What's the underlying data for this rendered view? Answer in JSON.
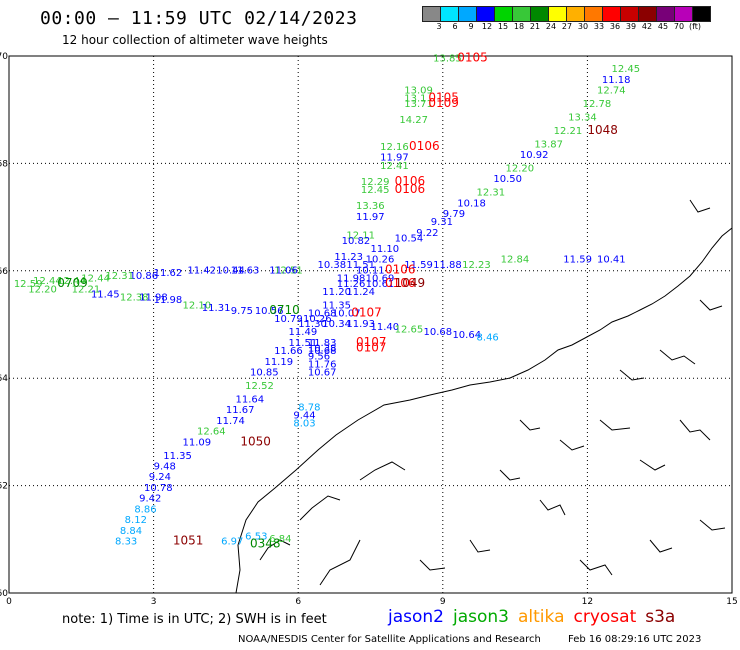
{
  "header": {
    "title": "00:00 – 11:59 UTC 02/14/2023",
    "subtitle": "12 hour collection of altimeter wave heights"
  },
  "colorbar": {
    "colors": [
      "#888888",
      "#00e5ff",
      "#00a8ff",
      "#0000ff",
      "#00d400",
      "#38c838",
      "#008800",
      "#ffff00",
      "#ffb000",
      "#ff7800",
      "#ff0000",
      "#c80000",
      "#8b0000",
      "#780078",
      "#b800b8",
      "#000000"
    ],
    "labels": [
      "3",
      "6",
      "9",
      "12",
      "15",
      "18",
      "21",
      "24",
      "27",
      "30",
      "33",
      "36",
      "39",
      "42",
      "45",
      "70",
      "(ft)"
    ]
  },
  "axes": {
    "x_ticks": [
      "0",
      "3",
      "6",
      "9",
      "12",
      "15"
    ],
    "y_ticks": [
      "70",
      "68",
      "66",
      "64",
      "62",
      "60"
    ]
  },
  "observations": [
    {
      "lon": 8.8,
      "lat": 69.9,
      "t": "13.85",
      "c": "#38c838"
    },
    {
      "lon": 9.3,
      "lat": 69.9,
      "t": "0105",
      "c": "#ff0000"
    },
    {
      "lon": 12.5,
      "lat": 69.7,
      "t": "12.45",
      "c": "#38c838"
    },
    {
      "lon": 12.3,
      "lat": 69.5,
      "t": "11.18",
      "c": "#0000ff"
    },
    {
      "lon": 8.2,
      "lat": 69.3,
      "t": "13.09",
      "c": "#38c838"
    },
    {
      "lon": 12.2,
      "lat": 69.3,
      "t": "12.74",
      "c": "#38c838"
    },
    {
      "lon": 8.2,
      "lat": 69.15,
      "t": "13.1",
      "c": "#38c838"
    },
    {
      "lon": 8.7,
      "lat": 69.15,
      "t": "0105",
      "c": "#ff0000"
    },
    {
      "lon": 8.2,
      "lat": 69.05,
      "t": "13.71",
      "c": "#38c838"
    },
    {
      "lon": 8.7,
      "lat": 69.05,
      "t": "0109",
      "c": "#ff0000"
    },
    {
      "lon": 11.9,
      "lat": 69.05,
      "t": "12.78",
      "c": "#38c838"
    },
    {
      "lon": 11.6,
      "lat": 68.8,
      "t": "13.34",
      "c": "#38c838"
    },
    {
      "lon": 8.1,
      "lat": 68.75,
      "t": "14.27",
      "c": "#38c838"
    },
    {
      "lon": 11.3,
      "lat": 68.55,
      "t": "12.21",
      "c": "#38c838"
    },
    {
      "lon": 12.0,
      "lat": 68.55,
      "t": "1048",
      "c": "#8b0000"
    },
    {
      "lon": 10.9,
      "lat": 68.3,
      "t": "13.87",
      "c": "#38c838"
    },
    {
      "lon": 7.7,
      "lat": 68.25,
      "t": "12.16",
      "c": "#38c838"
    },
    {
      "lon": 8.3,
      "lat": 68.25,
      "t": "0106",
      "c": "#ff0000"
    },
    {
      "lon": 10.6,
      "lat": 68.1,
      "t": "10.92",
      "c": "#0000ff"
    },
    {
      "lon": 7.7,
      "lat": 68.05,
      "t": "11.97",
      "c": "#0000ff"
    },
    {
      "lon": 7.7,
      "lat": 67.9,
      "t": "12.41",
      "c": "#38c838"
    },
    {
      "lon": 10.3,
      "lat": 67.85,
      "t": "12.20",
      "c": "#38c838"
    },
    {
      "lon": 10.05,
      "lat": 67.65,
      "t": "10.50",
      "c": "#0000ff"
    },
    {
      "lon": 7.3,
      "lat": 67.6,
      "t": "12.29",
      "c": "#38c838"
    },
    {
      "lon": 8.0,
      "lat": 67.6,
      "t": "0106",
      "c": "#ff0000"
    },
    {
      "lon": 7.3,
      "lat": 67.45,
      "t": "12.45",
      "c": "#38c838"
    },
    {
      "lon": 8.0,
      "lat": 67.45,
      "t": "0106",
      "c": "#ff0000"
    },
    {
      "lon": 9.7,
      "lat": 67.4,
      "t": "12.31",
      "c": "#38c838"
    },
    {
      "lon": 9.3,
      "lat": 67.2,
      "t": "10.18",
      "c": "#0000ff"
    },
    {
      "lon": 7.2,
      "lat": 67.15,
      "t": "13.36",
      "c": "#38c838"
    },
    {
      "lon": 9.0,
      "lat": 67.0,
      "t": "9.79",
      "c": "#0000ff"
    },
    {
      "lon": 7.2,
      "lat": 66.95,
      "t": "11.97",
      "c": "#0000ff"
    },
    {
      "lon": 8.75,
      "lat": 66.85,
      "t": "9.31",
      "c": "#0000ff"
    },
    {
      "lon": 8.45,
      "lat": 66.65,
      "t": "9.22",
      "c": "#0000ff"
    },
    {
      "lon": 7.0,
      "lat": 66.6,
      "t": "12.11",
      "c": "#38c838"
    },
    {
      "lon": 8.0,
      "lat": 66.55,
      "t": "10.54",
      "c": "#0000ff"
    },
    {
      "lon": 6.9,
      "lat": 66.5,
      "t": "10.82",
      "c": "#0000ff"
    },
    {
      "lon": 7.5,
      "lat": 66.35,
      "t": "11.10",
      "c": "#0000ff"
    },
    {
      "lon": 6.75,
      "lat": 66.2,
      "t": "11.23",
      "c": "#0000ff"
    },
    {
      "lon": 7.4,
      "lat": 66.15,
      "t": "10.26",
      "c": "#0000ff"
    },
    {
      "lon": 10.2,
      "lat": 66.15,
      "t": "12.84",
      "c": "#38c838"
    },
    {
      "lon": 11.5,
      "lat": 66.15,
      "t": "11.59",
      "c": "#0000ff"
    },
    {
      "lon": 12.2,
      "lat": 66.15,
      "t": "10.41",
      "c": "#0000ff"
    },
    {
      "lon": 6.4,
      "lat": 66.05,
      "t": "10.38",
      "c": "#0000ff"
    },
    {
      "lon": 7.0,
      "lat": 66.05,
      "t": "11.51",
      "c": "#0000ff"
    },
    {
      "lon": 8.2,
      "lat": 66.05,
      "t": "11.59",
      "c": "#0000ff"
    },
    {
      "lon": 8.8,
      "lat": 66.05,
      "t": "11.88",
      "c": "#0000ff"
    },
    {
      "lon": 9.4,
      "lat": 66.05,
      "t": "12.23",
      "c": "#38c838"
    },
    {
      "lon": 5.5,
      "lat": 65.95,
      "t": "12.51",
      "c": "#38c838"
    },
    {
      "lon": 4.6,
      "lat": 65.95,
      "t": "11.63",
      "c": "#0000ff"
    },
    {
      "lon": 5.4,
      "lat": 65.95,
      "t": "11.06",
      "c": "#0000ff"
    },
    {
      "lon": 7.2,
      "lat": 65.95,
      "t": "10.11",
      "c": "#0000ff"
    },
    {
      "lon": 7.8,
      "lat": 65.95,
      "t": "0106",
      "c": "#ff0000"
    },
    {
      "lon": 3.7,
      "lat": 65.95,
      "t": "11.42",
      "c": "#0000ff"
    },
    {
      "lon": 4.3,
      "lat": 65.95,
      "t": "10.44",
      "c": "#0000ff"
    },
    {
      "lon": 3.0,
      "lat": 65.9,
      "t": "11.62",
      "c": "#0000ff"
    },
    {
      "lon": 2.5,
      "lat": 65.85,
      "t": "10.86",
      "c": "#0000ff"
    },
    {
      "lon": 2.0,
      "lat": 65.85,
      "t": "12.31",
      "c": "#38c838"
    },
    {
      "lon": 6.8,
      "lat": 65.8,
      "t": "11.98",
      "c": "#0000ff"
    },
    {
      "lon": 7.4,
      "lat": 65.8,
      "t": "10.69",
      "c": "#0000ff"
    },
    {
      "lon": 1.5,
      "lat": 65.8,
      "t": "12.44",
      "c": "#38c838"
    },
    {
      "lon": 1.0,
      "lat": 65.75,
      "t": "12.44",
      "c": "#38c838"
    },
    {
      "lon": 0.5,
      "lat": 65.75,
      "t": "12.44",
      "c": "#38c838"
    },
    {
      "lon": 0.1,
      "lat": 65.7,
      "t": "12.59",
      "c": "#38c838"
    },
    {
      "lon": 1.0,
      "lat": 65.7,
      "t": "0709",
      "c": "#008800"
    },
    {
      "lon": 6.8,
      "lat": 65.7,
      "t": "11.26",
      "c": "#0000ff"
    },
    {
      "lon": 7.4,
      "lat": 65.7,
      "t": "10.61",
      "c": "#0000ff"
    },
    {
      "lon": 7.8,
      "lat": 65.7,
      "t": "0106",
      "c": "#ff0000"
    },
    {
      "lon": 8.0,
      "lat": 65.7,
      "t": "1049",
      "c": "#8b0000"
    },
    {
      "lon": 0.4,
      "lat": 65.6,
      "t": "12.20",
      "c": "#38c838"
    },
    {
      "lon": 1.3,
      "lat": 65.6,
      "t": "12.21",
      "c": "#38c838"
    },
    {
      "lon": 6.5,
      "lat": 65.55,
      "t": "11.20",
      "c": "#0000ff"
    },
    {
      "lon": 7.0,
      "lat": 65.55,
      "t": "11.24",
      "c": "#0000ff"
    },
    {
      "lon": 1.7,
      "lat": 65.5,
      "t": "11.45",
      "c": "#0000ff"
    },
    {
      "lon": 2.3,
      "lat": 65.45,
      "t": "12.38",
      "c": "#38c838"
    },
    {
      "lon": 2.7,
      "lat": 65.45,
      "t": "11.98",
      "c": "#0000ff"
    },
    {
      "lon": 3.0,
      "lat": 65.4,
      "t": "11.98",
      "c": "#0000ff"
    },
    {
      "lon": 3.6,
      "lat": 65.3,
      "t": "12.10",
      "c": "#38c838"
    },
    {
      "lon": 6.5,
      "lat": 65.3,
      "t": "11.35",
      "c": "#0000ff"
    },
    {
      "lon": 4.0,
      "lat": 65.25,
      "t": "11.31",
      "c": "#0000ff"
    },
    {
      "lon": 4.6,
      "lat": 65.2,
      "t": "9.75",
      "c": "#0000ff"
    },
    {
      "lon": 5.1,
      "lat": 65.2,
      "t": "10.56",
      "c": "#0000ff"
    },
    {
      "lon": 5.4,
      "lat": 65.2,
      "t": "0710",
      "c": "#008800"
    },
    {
      "lon": 6.2,
      "lat": 65.15,
      "t": "10.68",
      "c": "#0000ff"
    },
    {
      "lon": 6.7,
      "lat": 65.15,
      "t": "10.07",
      "c": "#0000ff"
    },
    {
      "lon": 7.1,
      "lat": 65.15,
      "t": "0107",
      "c": "#ff0000"
    },
    {
      "lon": 5.5,
      "lat": 65.05,
      "t": "10.79",
      "c": "#0000ff"
    },
    {
      "lon": 6.1,
      "lat": 65.05,
      "t": "10.26",
      "c": "#0000ff"
    },
    {
      "lon": 6.0,
      "lat": 64.95,
      "t": "11.30",
      "c": "#0000ff"
    },
    {
      "lon": 6.5,
      "lat": 64.95,
      "t": "10.34",
      "c": "#0000ff"
    },
    {
      "lon": 7.0,
      "lat": 64.95,
      "t": "11.93",
      "c": "#0000ff"
    },
    {
      "lon": 7.5,
      "lat": 64.9,
      "t": "11.40",
      "c": "#0000ff"
    },
    {
      "lon": 8.0,
      "lat": 64.85,
      "t": "12.65",
      "c": "#38c838"
    },
    {
      "lon": 5.8,
      "lat": 64.8,
      "t": "11.49",
      "c": "#0000ff"
    },
    {
      "lon": 8.6,
      "lat": 64.8,
      "t": "10.68",
      "c": "#0000ff"
    },
    {
      "lon": 9.2,
      "lat": 64.75,
      "t": "10.64",
      "c": "#0000ff"
    },
    {
      "lon": 9.7,
      "lat": 64.7,
      "t": "8.46",
      "c": "#00a8ff"
    },
    {
      "lon": 5.8,
      "lat": 64.6,
      "t": "11.51",
      "c": "#0000ff"
    },
    {
      "lon": 6.2,
      "lat": 64.6,
      "t": "11.83",
      "c": "#0000ff"
    },
    {
      "lon": 7.2,
      "lat": 64.6,
      "t": "0107",
      "c": "#ff0000"
    },
    {
      "lon": 6.2,
      "lat": 64.5,
      "t": "10.38",
      "c": "#0000ff"
    },
    {
      "lon": 6.2,
      "lat": 64.45,
      "t": "10.68",
      "c": "#0000ff"
    },
    {
      "lon": 7.2,
      "lat": 64.5,
      "t": "0107",
      "c": "#ff0000"
    },
    {
      "lon": 5.5,
      "lat": 64.45,
      "t": "11.66",
      "c": "#0000ff"
    },
    {
      "lon": 6.2,
      "lat": 64.35,
      "t": "9.56",
      "c": "#0000ff"
    },
    {
      "lon": 5.3,
      "lat": 64.25,
      "t": "11.19",
      "c": "#0000ff"
    },
    {
      "lon": 6.2,
      "lat": 64.2,
      "t": "11.76",
      "c": "#0000ff"
    },
    {
      "lon": 5.0,
      "lat": 64.05,
      "t": "10.85",
      "c": "#0000ff"
    },
    {
      "lon": 6.2,
      "lat": 64.05,
      "t": "10.67",
      "c": "#0000ff"
    },
    {
      "lon": 4.9,
      "lat": 63.8,
      "t": "12.52",
      "c": "#38c838"
    },
    {
      "lon": 4.7,
      "lat": 63.55,
      "t": "11.64",
      "c": "#0000ff"
    },
    {
      "lon": 6.0,
      "lat": 63.4,
      "t": "8.78",
      "c": "#00a8ff"
    },
    {
      "lon": 4.5,
      "lat": 63.35,
      "t": "11.67",
      "c": "#0000ff"
    },
    {
      "lon": 5.9,
      "lat": 63.25,
      "t": "9.44",
      "c": "#0000ff"
    },
    {
      "lon": 4.3,
      "lat": 63.15,
      "t": "11.74",
      "c": "#0000ff"
    },
    {
      "lon": 5.9,
      "lat": 63.1,
      "t": "8.03",
      "c": "#00a8ff"
    },
    {
      "lon": 3.9,
      "lat": 62.95,
      "t": "12.64",
      "c": "#38c838"
    },
    {
      "lon": 3.6,
      "lat": 62.75,
      "t": "11.09",
      "c": "#0000ff"
    },
    {
      "lon": 4.8,
      "lat": 62.75,
      "t": "1050",
      "c": "#8b0000"
    },
    {
      "lon": 3.2,
      "lat": 62.5,
      "t": "11.35",
      "c": "#0000ff"
    },
    {
      "lon": 3.0,
      "lat": 62.3,
      "t": "9.48",
      "c": "#0000ff"
    },
    {
      "lon": 2.9,
      "lat": 62.1,
      "t": "9.24",
      "c": "#0000ff"
    },
    {
      "lon": 2.8,
      "lat": 61.9,
      "t": "10.78",
      "c": "#0000ff"
    },
    {
      "lon": 2.7,
      "lat": 61.7,
      "t": "9.42",
      "c": "#0000ff"
    },
    {
      "lon": 2.6,
      "lat": 61.5,
      "t": "8.86",
      "c": "#00a8ff"
    },
    {
      "lon": 2.4,
      "lat": 61.3,
      "t": "8.12",
      "c": "#00a8ff"
    },
    {
      "lon": 2.3,
      "lat": 61.1,
      "t": "8.84",
      "c": "#00a8ff"
    },
    {
      "lon": 2.2,
      "lat": 60.9,
      "t": "8.33",
      "c": "#00a8ff"
    },
    {
      "lon": 3.4,
      "lat": 60.9,
      "t": "1051",
      "c": "#8b0000"
    },
    {
      "lon": 4.4,
      "lat": 60.9,
      "t": "6.97",
      "c": "#00a8ff"
    },
    {
      "lon": 4.9,
      "lat": 61.0,
      "t": "6.53",
      "c": "#00a8ff"
    },
    {
      "lon": 5.0,
      "lat": 60.85,
      "t": "0348",
      "c": "#008800"
    },
    {
      "lon": 5.4,
      "lat": 60.95,
      "t": "6.84",
      "c": "#38c838"
    }
  ],
  "footer": {
    "note": "note: 1) Time is in UTC; 2) SWH is in feet",
    "legend": [
      {
        "label": "jason2",
        "color": "#0000ff"
      },
      {
        "label": "jason3",
        "color": "#00aa00"
      },
      {
        "label": "altika",
        "color": "#ff9900"
      },
      {
        "label": "cryosat",
        "color": "#ff0000"
      },
      {
        "label": "s3a",
        "color": "#8b0000"
      }
    ],
    "credit": "NOAA/NESDIS Center for Satellite Applications and Research",
    "timestamp": "Feb 16 08:29:16 UTC 2023"
  }
}
